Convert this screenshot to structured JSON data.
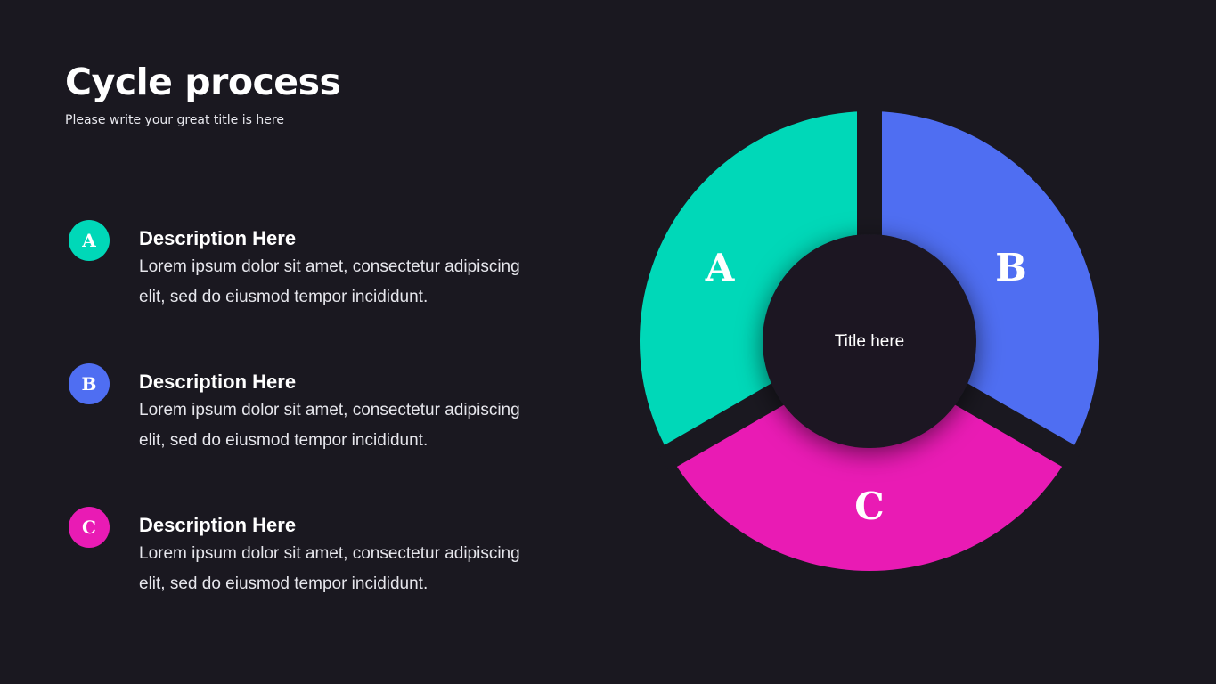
{
  "header": {
    "title": "Cycle process",
    "subtitle": "Please write your great title is here"
  },
  "items": [
    {
      "letter": "A",
      "heading": "Description Here",
      "body": "Lorem ipsum dolor sit amet, consectetur adipiscing elit, sed do eiusmod tempor incididunt.",
      "color": "#00d8b8"
    },
    {
      "letter": "B",
      "heading": "Description Here",
      "body": "Lorem ipsum dolor sit amet, consectetur adipiscing elit, sed do eiusmod tempor incididunt.",
      "color": "#4f6ef2"
    },
    {
      "letter": "C",
      "heading": "Description Here",
      "body": "Lorem ipsum dolor sit amet, consectetur adipiscing elit, sed do eiusmod tempor incididunt.",
      "color": "#e91bb4"
    }
  ],
  "diagram": {
    "center_label": "Title here",
    "segments": [
      {
        "label": "A",
        "color": "#00d8b8"
      },
      {
        "label": "B",
        "color": "#4f6ef2"
      },
      {
        "label": "C",
        "color": "#e91bb4"
      }
    ]
  },
  "colors": {
    "background": "#1a1820"
  }
}
